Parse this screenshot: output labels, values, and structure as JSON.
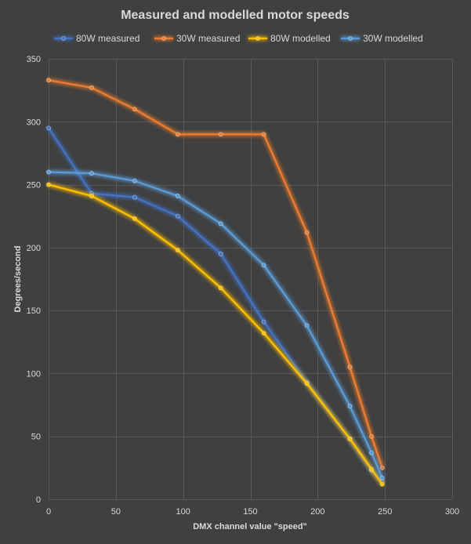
{
  "chart_data": {
    "type": "line",
    "title": "Measured and modelled motor speeds",
    "xlabel": "DMX channel value \"speed\"",
    "ylabel": "Degrees/second",
    "xlim": [
      0,
      300
    ],
    "ylim": [
      0,
      350
    ],
    "xticks": [
      0,
      50,
      100,
      150,
      200,
      250,
      300
    ],
    "yticks": [
      0,
      50,
      100,
      150,
      200,
      250,
      300,
      350
    ],
    "grid": true,
    "legend_position": "top",
    "series": [
      {
        "name": "80W measured",
        "color": "#4472C4",
        "x": [
          0,
          32,
          64,
          96,
          128,
          160,
          192,
          224,
          240,
          248
        ],
        "y": [
          295,
          243,
          240,
          225,
          195,
          141,
          93,
          48,
          23,
          14
        ]
      },
      {
        "name": "30W measured",
        "color": "#ED7D31",
        "x": [
          0,
          32,
          64,
          96,
          128,
          160,
          192,
          224,
          240,
          248
        ],
        "y": [
          333,
          327,
          310,
          290,
          290,
          290,
          212,
          105,
          50,
          25
        ]
      },
      {
        "name": "80W modelled",
        "color": "#FFC000",
        "x": [
          0,
          32,
          64,
          96,
          128,
          160,
          192,
          224,
          240,
          248
        ],
        "y": [
          250,
          241,
          223,
          198,
          168,
          132,
          92,
          48,
          24,
          12
        ]
      },
      {
        "name": "30W modelled",
        "color": "#5B9BD5",
        "x": [
          0,
          32,
          64,
          96,
          128,
          160,
          192,
          224,
          240,
          248
        ],
        "y": [
          260,
          259,
          253,
          241,
          219,
          186,
          138,
          74,
          37,
          17
        ]
      }
    ]
  },
  "theme": {
    "background": "#404040",
    "text": "#d9d9d9",
    "grid": "#595959"
  }
}
